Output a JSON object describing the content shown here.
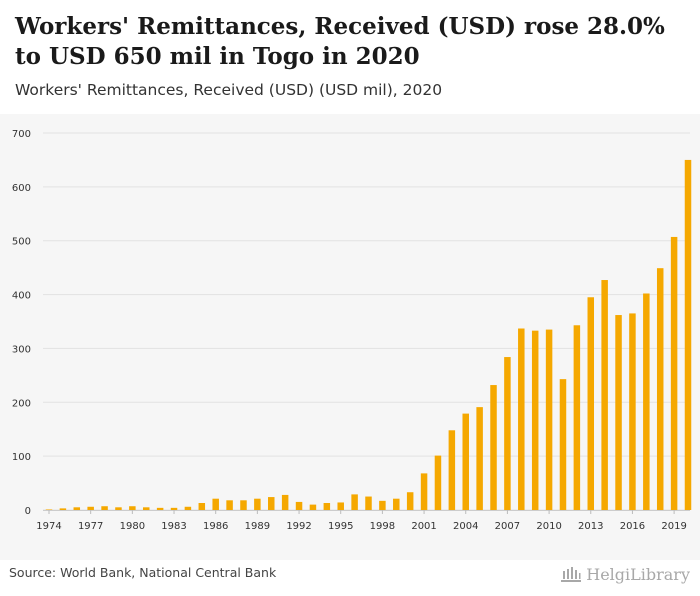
{
  "header": {
    "title": "Workers' Remittances, Received (USD) rose 28.0% to USD 650 mil in Togo in 2020",
    "subtitle": "Workers' Remittances, Received (USD) (USD mil), 2020"
  },
  "footer": {
    "source": "Source: World Bank, National Central Bank",
    "brand": "HelgiLibrary"
  },
  "colors": {
    "bar": "#f5a800",
    "grid": "#e2e2e2",
    "axis_text": "#333333",
    "plot_bg": "#f6f6f6"
  },
  "chart_data": {
    "type": "bar",
    "title": "Workers' Remittances, Received (USD) (USD mil)",
    "xlabel": "",
    "ylabel": "",
    "ylim": [
      0,
      700
    ],
    "yticks": [
      0,
      100,
      200,
      300,
      400,
      500,
      600,
      700
    ],
    "grid": true,
    "x_tick_labels": [
      "1974",
      "1977",
      "1980",
      "1983",
      "1986",
      "1989",
      "1992",
      "1995",
      "1998",
      "2001",
      "2004",
      "2007",
      "2010",
      "2013",
      "2016",
      "2019"
    ],
    "categories": [
      "1974",
      "1975",
      "1976",
      "1977",
      "1978",
      "1979",
      "1980",
      "1981",
      "1982",
      "1983",
      "1984",
      "1985",
      "1986",
      "1987",
      "1988",
      "1989",
      "1990",
      "1991",
      "1992",
      "1993",
      "1994",
      "1995",
      "1996",
      "1997",
      "1998",
      "1999",
      "2000",
      "2001",
      "2002",
      "2003",
      "2004",
      "2005",
      "2006",
      "2007",
      "2008",
      "2009",
      "2010",
      "2011",
      "2012",
      "2013",
      "2014",
      "2015",
      "2016",
      "2017",
      "2018",
      "2019",
      "2020"
    ],
    "values": [
      1,
      3,
      5,
      6,
      7,
      5,
      7,
      5,
      4,
      4,
      6,
      13,
      21,
      18,
      18,
      21,
      24,
      28,
      15,
      10,
      13,
      14,
      29,
      25,
      17,
      21,
      33,
      68,
      101,
      148,
      179,
      191,
      232,
      284,
      337,
      333,
      335,
      243,
      343,
      395,
      427,
      362,
      365,
      402,
      449,
      507,
      650
    ]
  }
}
